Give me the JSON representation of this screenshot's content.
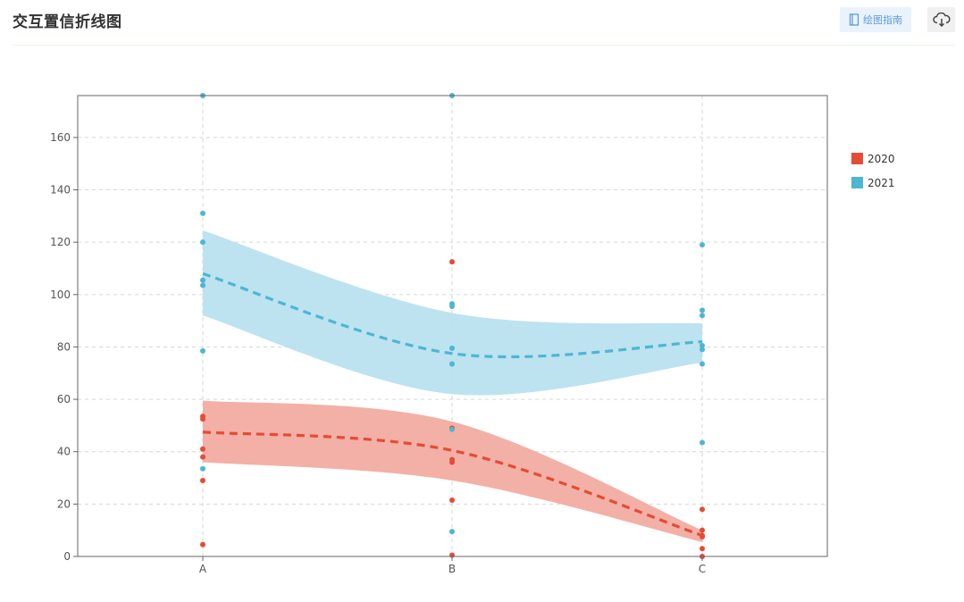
{
  "header": {
    "title": "交互置信折线图",
    "guide_label": "绘图指南",
    "guide_icon": "book-icon",
    "download_icon": "cloud-download-icon"
  },
  "chart_data": {
    "type": "line",
    "title": "",
    "xlabel": "",
    "ylabel": "",
    "categories": [
      "A",
      "B",
      "C"
    ],
    "ylim": [
      0,
      176
    ],
    "yticks": [
      0,
      20,
      40,
      60,
      80,
      100,
      120,
      140,
      160
    ],
    "grid": true,
    "legend_position": "right",
    "series": [
      {
        "name": "2020",
        "color": "#e64b35",
        "band_color": "#f2aca2",
        "mean": [
          47.5,
          40.5,
          8
        ],
        "ci_lower": [
          36,
          29,
          5.5
        ],
        "ci_upper": [
          59.5,
          51.5,
          10
        ],
        "points": [
          [
            53.5,
            52.5,
            41,
            38,
            29,
            4.5
          ],
          [
            112.5,
            49,
            37,
            36,
            21.5,
            0.5
          ],
          [
            18,
            10,
            8,
            7.5,
            3,
            0
          ]
        ]
      },
      {
        "name": "2021",
        "color": "#4db6d3",
        "band_color": "#b8e2ee",
        "mean": [
          108,
          77.5,
          82
        ],
        "ci_lower": [
          92,
          62,
          74
        ],
        "ci_upper": [
          124.5,
          93,
          89
        ],
        "points": [
          [
            176,
            131,
            120,
            105.5,
            103.5,
            78.5,
            33.5
          ],
          [
            177,
            96.5,
            95.5,
            79.5,
            73.5,
            48.5,
            9.5
          ],
          [
            119,
            94,
            92,
            80.5,
            79,
            73.5,
            43.5
          ]
        ]
      }
    ]
  }
}
